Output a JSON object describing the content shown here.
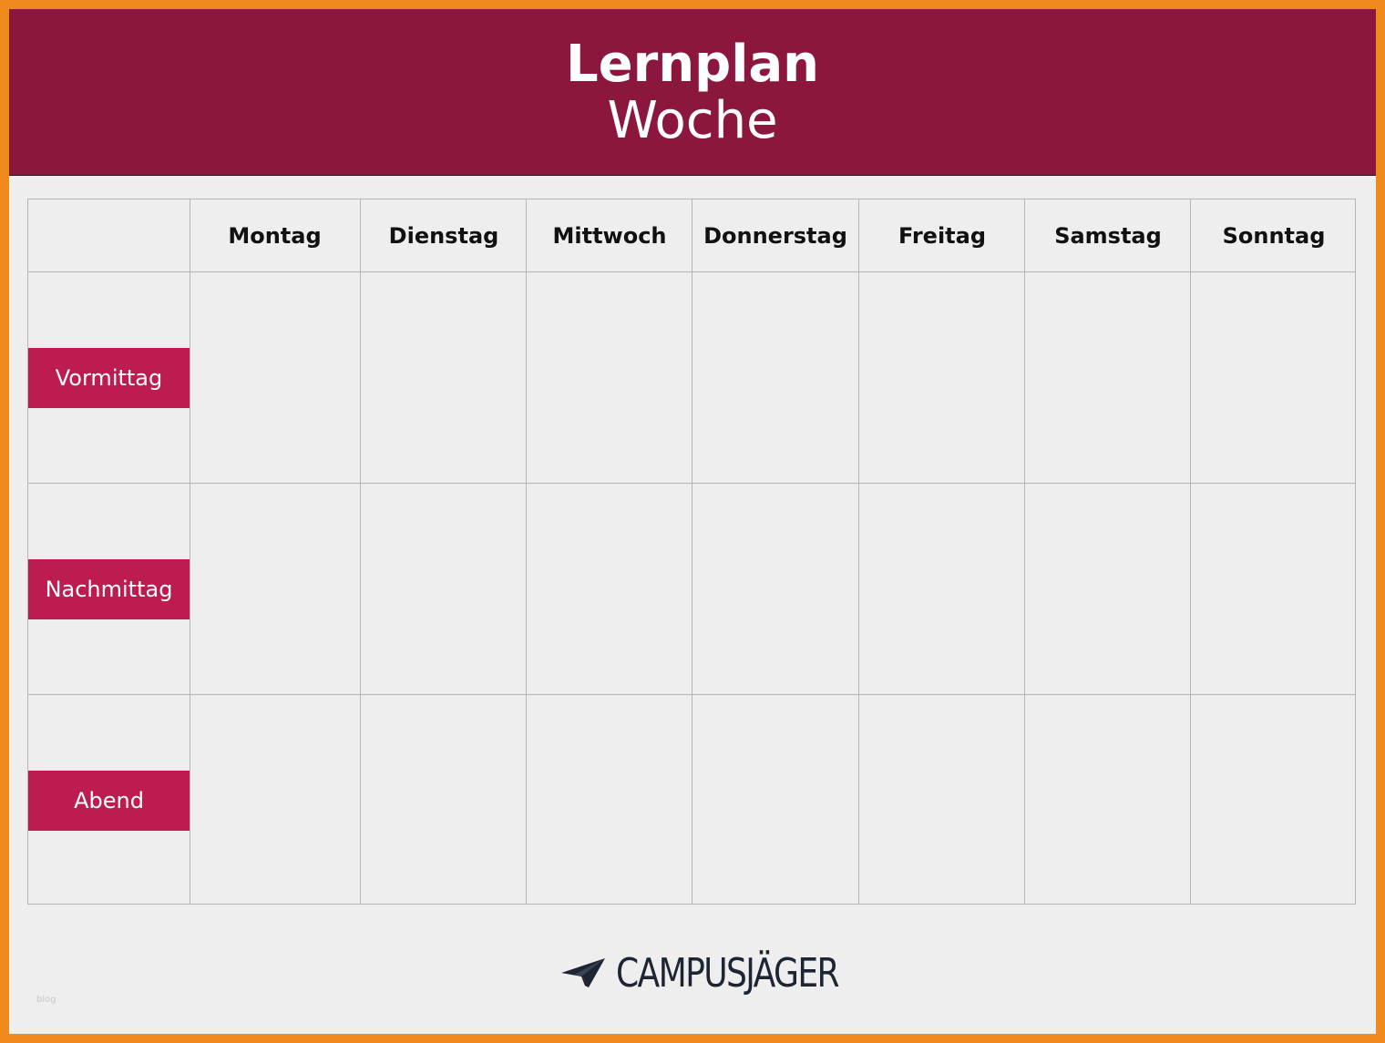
{
  "header": {
    "title": "Lernplan",
    "subtitle": "Woche"
  },
  "days": [
    "Montag",
    "Dienstag",
    "Mittwoch",
    "Donnerstag",
    "Freitag",
    "Samstag",
    "Sonntag"
  ],
  "slots": [
    "Vormittag",
    "Nachmittag",
    "Abend"
  ],
  "footer": {
    "logo_text": "CAMPUSJÄGER",
    "watermark": "blog"
  },
  "colors": {
    "header_bg": "#8c173d",
    "slot_label_bg": "#bd1d4e",
    "frame_border": "#f08a1c",
    "page_bg": "#eeeeef"
  }
}
